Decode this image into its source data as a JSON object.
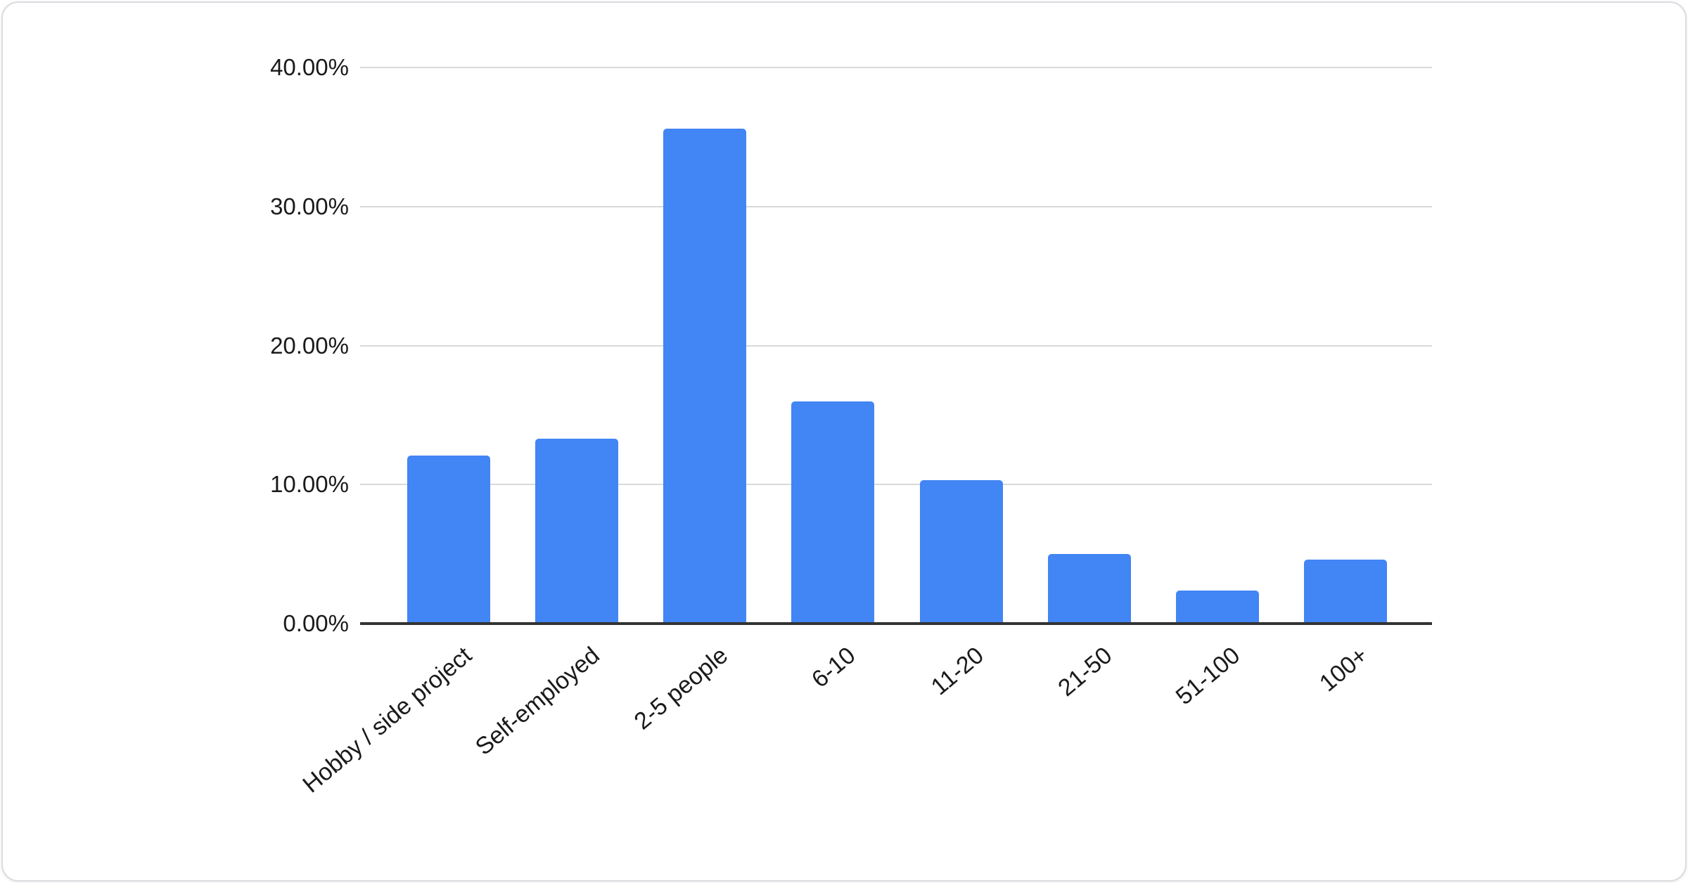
{
  "chart_data": {
    "type": "bar",
    "title": "",
    "xlabel": "",
    "ylabel": "",
    "categories": [
      "Hobby / side project",
      "Self-employed",
      "2-5 people",
      "6-10",
      "11-20",
      "21-50",
      "51-100",
      "100+"
    ],
    "values": [
      12.1,
      13.3,
      35.6,
      16.0,
      10.3,
      5.0,
      2.4,
      4.6
    ],
    "ylim": [
      0,
      40
    ],
    "y_ticks": [
      "0.00%",
      "10.00%",
      "20.00%",
      "30.00%",
      "40.00%"
    ],
    "y_tick_values": [
      0,
      10,
      20,
      30,
      40
    ],
    "grid": true,
    "legend_position": "none",
    "bar_corner_radius": "rounded-top",
    "colors": {
      "bar": "#4285f4",
      "gridline": "#d9d9d9",
      "axis": "#333333",
      "label": "#1a1a1a",
      "card_border": "#dadce0",
      "background": "#ffffff"
    }
  }
}
